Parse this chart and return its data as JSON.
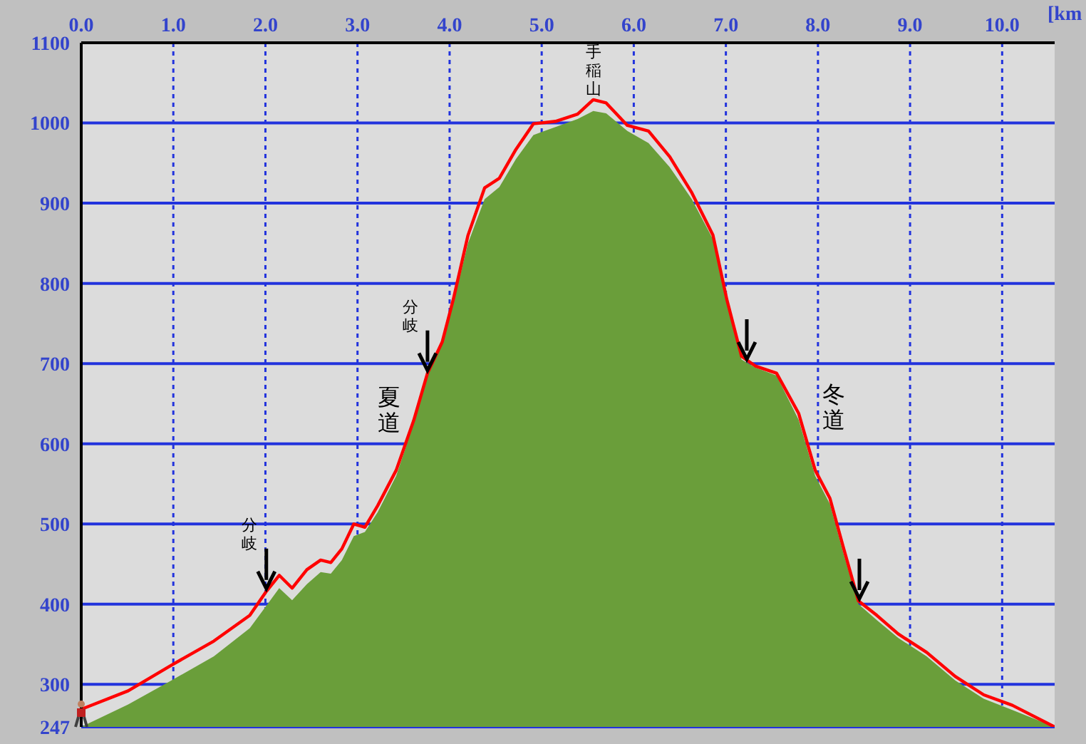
{
  "chart_data": {
    "type": "area",
    "xlabel": "[km",
    "x": [
      0,
      0.51,
      0.98,
      1.44,
      1.83,
      2.01,
      2.15,
      2.29,
      2.45,
      2.6,
      2.71,
      2.83,
      2.96,
      3.08,
      3.22,
      3.42,
      3.61,
      3.76,
      3.92,
      4.04,
      4.2,
      4.38,
      4.54,
      4.72,
      4.91,
      5.15,
      5.39,
      5.56,
      5.7,
      5.93,
      6.16,
      6.39,
      6.63,
      6.86,
      7.01,
      7.17,
      7.32,
      7.55,
      7.79,
      7.97,
      8.13,
      8.28,
      8.44,
      8.64,
      8.87,
      9.18,
      9.49,
      9.8,
      10.11,
      10.57
    ],
    "series": [
      {
        "color": "#6a9e3a",
        "values": [
          247,
          275,
          305,
          335,
          370,
          398,
          420,
          405,
          425,
          440,
          438,
          455,
          485,
          490,
          515,
          560,
          625,
          685,
          725,
          775,
          850,
          905,
          920,
          955,
          985,
          995,
          1005,
          1015,
          1012,
          990,
          975,
          945,
          905,
          855,
          775,
          705,
          695,
          685,
          630,
          560,
          525,
          462,
          400,
          380,
          358,
          335,
          305,
          282,
          268,
          247
        ]
      },
      {
        "type": "line",
        "color": "#ff0000",
        "values": [
          269,
          292,
          324,
          354,
          386,
          416,
          436,
          420,
          443,
          455,
          452,
          469,
          500,
          496,
          523,
          567,
          629,
          688,
          727,
          780,
          860,
          919,
          931,
          967,
          999,
          1002,
          1011,
          1029,
          1025,
          997,
          990,
          958,
          913,
          860,
          780,
          709,
          697,
          688,
          638,
          567,
          532,
          469,
          404,
          386,
          363,
          340,
          310,
          287,
          274,
          247
        ]
      }
    ],
    "xlim": [
      0,
      10.57
    ],
    "xticks": [
      {
        "value": 0,
        "label": "0.0"
      },
      {
        "value": 1,
        "label": "1.0"
      },
      {
        "value": 2,
        "label": "2.0"
      },
      {
        "value": 3,
        "label": "3.0"
      },
      {
        "value": 4,
        "label": "4.0"
      },
      {
        "value": 5,
        "label": "5.0"
      },
      {
        "value": 6,
        "label": "6.0"
      },
      {
        "value": 7,
        "label": "7.0"
      },
      {
        "value": 8,
        "label": "8.0"
      },
      {
        "value": 9,
        "label": "9.0"
      },
      {
        "value": 10,
        "label": "10.0"
      }
    ],
    "ylim": [
      247,
      1100
    ],
    "yticks": [
      247,
      300,
      400,
      500,
      600,
      700,
      800,
      900,
      1000,
      1100
    ],
    "grid": true,
    "annotations": [
      {
        "text": "分岐",
        "x": 2.01,
        "y": 416
      },
      {
        "text": "分岐",
        "x": 3.76,
        "y": 688
      },
      {
        "text": "手稲山",
        "x": 5.56,
        "y": 1029
      },
      "夏道",
      "冬道"
    ]
  }
}
